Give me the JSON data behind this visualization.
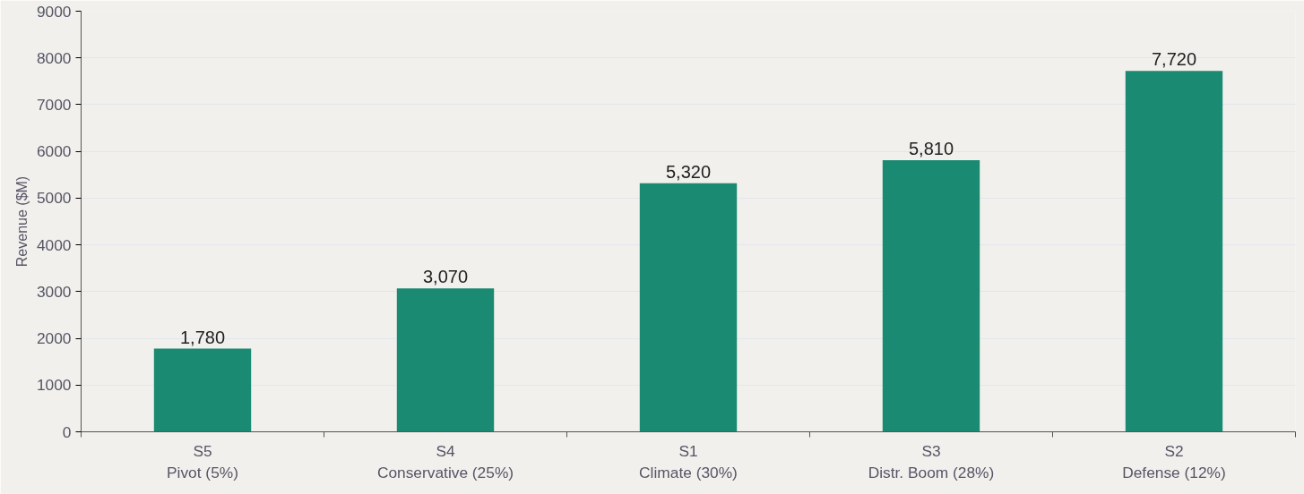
{
  "chart_data": {
    "type": "bar",
    "ylabel": "Revenue ($M)",
    "categories": [
      "S5\nPivot (5%)",
      "S4\nConservative (25%)",
      "S1\nClimate (30%)",
      "S3\nDistr. Boom (28%)",
      "S2\nDefense (12%)"
    ],
    "values": [
      1780,
      3070,
      5320,
      5810,
      7720
    ],
    "color": "#1b8a72",
    "ylim": [
      0,
      9000
    ],
    "yticks": [
      0,
      1000,
      2000,
      3000,
      4000,
      5000,
      6000,
      7000,
      8000,
      9000
    ],
    "grid": "y",
    "value_labels": [
      "1,780",
      "3,070",
      "5,320",
      "5,810",
      "7,720"
    ]
  }
}
